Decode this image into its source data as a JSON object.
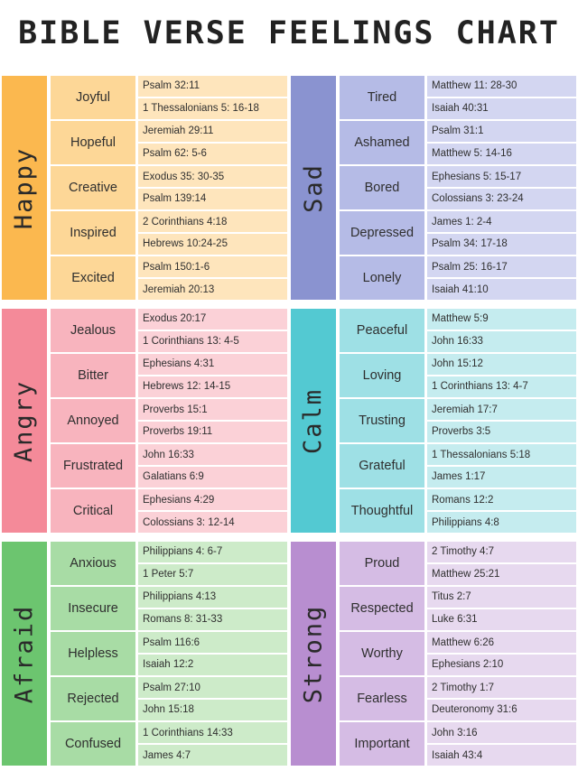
{
  "title": "BIBLE VERSE FEELINGS CHART",
  "sections": [
    {
      "category": "Happy",
      "colors": {
        "strong": "#fbb84f",
        "mid": "#fdd797",
        "light": "#fee5bc"
      },
      "rows": [
        {
          "feeling": "Joyful",
          "verses": [
            "Psalm 32:11",
            "1 Thessalonians 5: 16-18"
          ]
        },
        {
          "feeling": "Hopeful",
          "verses": [
            "Jeremiah 29:11",
            "Psalm 62: 5-6"
          ]
        },
        {
          "feeling": "Creative",
          "verses": [
            "Exodus 35: 30-35",
            "Psalm 139:14"
          ]
        },
        {
          "feeling": "Inspired",
          "verses": [
            "2 Corinthians 4:18",
            "Hebrews 10:24-25"
          ]
        },
        {
          "feeling": "Excited",
          "verses": [
            "Psalm 150:1-6",
            "Jeremiah 20:13"
          ]
        }
      ]
    },
    {
      "category": "Sad",
      "colors": {
        "strong": "#8a93d0",
        "mid": "#b5bbe6",
        "light": "#d3d6f1"
      },
      "rows": [
        {
          "feeling": "Tired",
          "verses": [
            "Matthew 11: 28-30",
            "Isaiah 40:31"
          ]
        },
        {
          "feeling": "Ashamed",
          "verses": [
            "Psalm 31:1",
            "Matthew 5: 14-16"
          ]
        },
        {
          "feeling": "Bored",
          "verses": [
            "Ephesians 5: 15-17",
            "Colossians 3: 23-24"
          ]
        },
        {
          "feeling": "Depressed",
          "verses": [
            "James 1: 2-4",
            "Psalm 34: 17-18"
          ]
        },
        {
          "feeling": "Lonely",
          "verses": [
            "Psalm 25: 16-17",
            "Isaiah 41:10"
          ]
        }
      ]
    },
    {
      "category": "Angry",
      "colors": {
        "strong": "#f48a99",
        "mid": "#f8b4be",
        "light": "#fbd1d7"
      },
      "rows": [
        {
          "feeling": "Jealous",
          "verses": [
            "Exodus 20:17",
            "1 Corinthians 13: 4-5"
          ]
        },
        {
          "feeling": "Bitter",
          "verses": [
            "Ephesians 4:31",
            "Hebrews 12: 14-15"
          ]
        },
        {
          "feeling": "Annoyed",
          "verses": [
            "Proverbs 15:1",
            "Proverbs 19:11"
          ]
        },
        {
          "feeling": "Frustrated",
          "verses": [
            "John 16:33",
            "Galatians 6:9"
          ]
        },
        {
          "feeling": "Critical",
          "verses": [
            "Ephesians 4:29",
            "Colossians 3: 12-14"
          ]
        }
      ]
    },
    {
      "category": "Calm",
      "colors": {
        "strong": "#53c9d2",
        "mid": "#9ee0e5",
        "light": "#c5ecef"
      },
      "rows": [
        {
          "feeling": "Peaceful",
          "verses": [
            "Matthew 5:9",
            "John 16:33"
          ]
        },
        {
          "feeling": "Loving",
          "verses": [
            "John 15:12",
            "1 Corinthians 13: 4-7"
          ]
        },
        {
          "feeling": "Trusting",
          "verses": [
            "Jeremiah 17:7",
            "Proverbs 3:5"
          ]
        },
        {
          "feeling": "Grateful",
          "verses": [
            "1 Thessalonians 5:18",
            "James 1:17"
          ]
        },
        {
          "feeling": "Thoughtful",
          "verses": [
            "Romans 12:2",
            "Philippians 4:8"
          ]
        }
      ]
    },
    {
      "category": "Afraid",
      "colors": {
        "strong": "#6cc56f",
        "mid": "#a8dca5",
        "light": "#cdebc9"
      },
      "rows": [
        {
          "feeling": "Anxious",
          "verses": [
            "Philippians 4: 6-7",
            "1 Peter 5:7"
          ]
        },
        {
          "feeling": "Insecure",
          "verses": [
            "Philippians 4:13",
            "Romans 8: 31-33"
          ]
        },
        {
          "feeling": "Helpless",
          "verses": [
            "Psalm 116:6",
            "Isaiah 12:2"
          ]
        },
        {
          "feeling": "Rejected",
          "verses": [
            "Psalm 27:10",
            "John 15:18"
          ]
        },
        {
          "feeling": "Confused",
          "verses": [
            "1 Corinthians 14:33",
            "James 4:7"
          ]
        }
      ]
    },
    {
      "category": "Strong",
      "colors": {
        "strong": "#b88ed0",
        "mid": "#d5bce4",
        "light": "#e7d9ef"
      },
      "rows": [
        {
          "feeling": "Proud",
          "verses": [
            "2 Timothy 4:7",
            "Matthew 25:21"
          ]
        },
        {
          "feeling": "Respected",
          "verses": [
            "Titus 2:7",
            "Luke 6:31"
          ]
        },
        {
          "feeling": "Worthy",
          "verses": [
            "Matthew 6:26",
            "Ephesians 2:10"
          ]
        },
        {
          "feeling": "Fearless",
          "verses": [
            "2 Timothy 1:7",
            "Deuteronomy 31:6"
          ]
        },
        {
          "feeling": "Important",
          "verses": [
            "John 3:16",
            "Isaiah 43:4"
          ]
        }
      ]
    }
  ]
}
